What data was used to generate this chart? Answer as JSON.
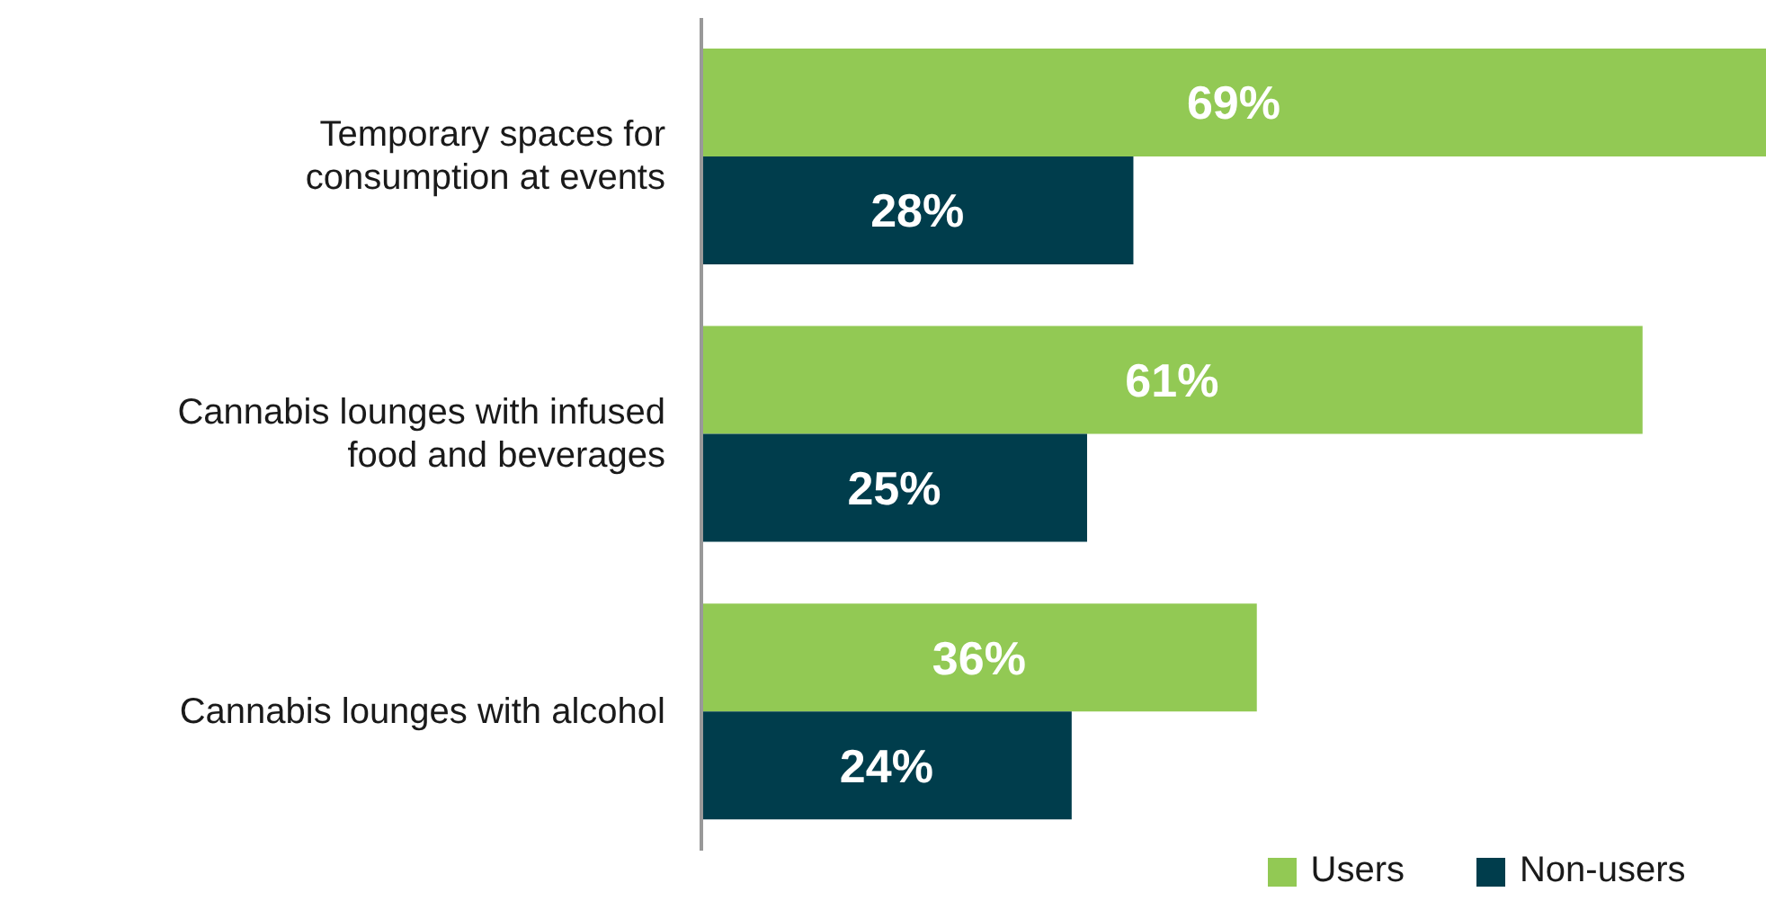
{
  "chart_data": {
    "type": "bar",
    "orientation": "horizontal",
    "categories": [
      "Temporary spaces for consumption at events",
      "Cannabis lounges with infused food and beverages",
      "Cannabis lounges with alcohol"
    ],
    "series": [
      {
        "name": "Users",
        "color": "#92c954",
        "values": [
          69,
          61,
          36
        ],
        "value_labels": [
          "69%",
          "61%",
          "36%"
        ]
      },
      {
        "name": "Non-users",
        "color": "#003d4c",
        "values": [
          28,
          25,
          24
        ],
        "value_labels": [
          "28%",
          "25%",
          "24%"
        ]
      }
    ],
    "legend": "bottom",
    "grid": false
  }
}
